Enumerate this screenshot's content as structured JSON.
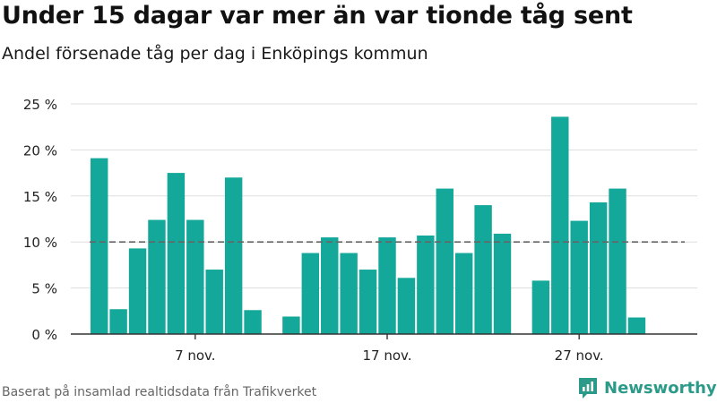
{
  "header": {
    "title": "Under 15 dagar var mer än var tionde tåg sent",
    "subtitle": "Andel försenade tåg per dag i Enköpings kommun"
  },
  "footer": {
    "source": "Baserat på insamlad realtidsdata från Trafikverket",
    "brand": "Newsworthy",
    "brand_icon": "newsworthy-logo-icon"
  },
  "colors": {
    "bar": "#14a89a",
    "reference_line": "#666666",
    "grid": "#dddddd",
    "axis": "#333333",
    "brand": "#2b9a88"
  },
  "chart_data": {
    "type": "bar",
    "title": "Under 15 dagar var mer än var tionde tåg sent",
    "subtitle": "Andel försenade tåg per dag i Enköpings kommun",
    "xlabel": "",
    "ylabel": "",
    "ylim": [
      0,
      25
    ],
    "yticks": [
      0,
      5,
      10,
      15,
      20,
      25
    ],
    "ytick_labels": [
      "0 %",
      "5 %",
      "10 %",
      "15 %",
      "20 %",
      "25 %"
    ],
    "x_start_day": 2,
    "x_end_day": 32,
    "xticks": [
      7,
      17,
      27
    ],
    "xtick_labels": [
      "7 nov.",
      "17 nov.",
      "27 nov."
    ],
    "reference_line": 10,
    "grid": true,
    "days": [
      2,
      3,
      4,
      5,
      6,
      7,
      8,
      9,
      10,
      12,
      13,
      14,
      15,
      16,
      17,
      18,
      19,
      20,
      21,
      22,
      23,
      25,
      26,
      27,
      28,
      29,
      30
    ],
    "values": [
      19.1,
      2.7,
      9.3,
      12.4,
      17.5,
      12.4,
      7.0,
      17.0,
      2.6,
      1.9,
      8.8,
      10.5,
      8.8,
      7.0,
      10.5,
      6.1,
      10.7,
      15.8,
      8.8,
      14.0,
      10.9,
      5.8,
      23.6,
      12.3,
      14.3,
      15.8,
      1.8
    ]
  }
}
